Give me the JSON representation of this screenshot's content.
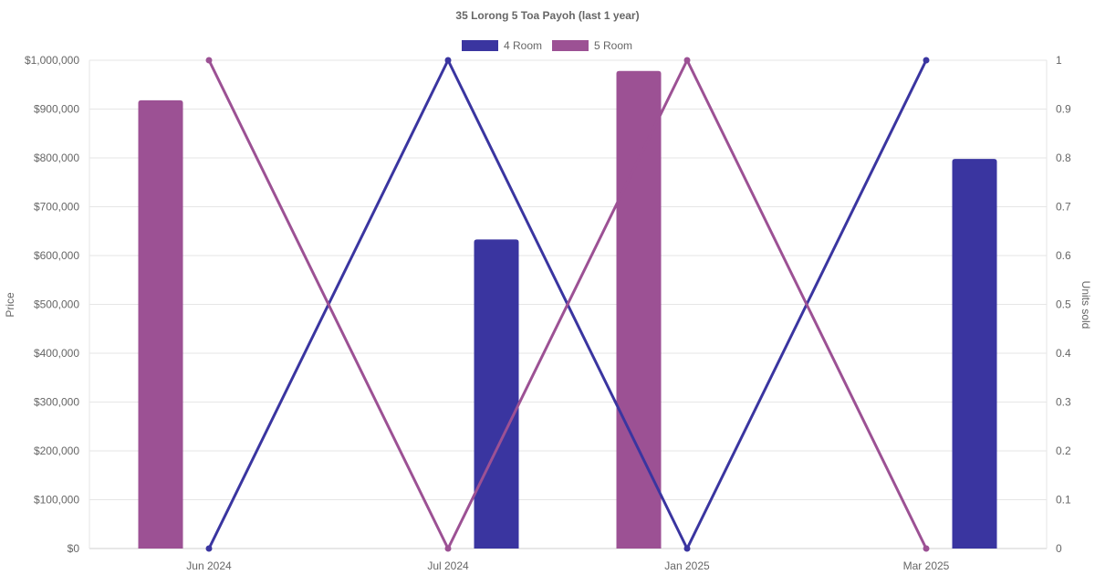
{
  "chart_data": {
    "type": "bar",
    "title": "35 Lorong 5 Toa Payoh (last 1 year)",
    "categories": [
      "Jun 2024",
      "Jul 2024",
      "Jan 2025",
      "Mar 2025"
    ],
    "y_left": {
      "label": "Price",
      "min": 0,
      "max": 1000000,
      "ticks": [
        "$0",
        "$100,000",
        "$200,000",
        "$300,000",
        "$400,000",
        "$500,000",
        "$600,000",
        "$700,000",
        "$800,000",
        "$900,000",
        "$1,000,000"
      ]
    },
    "y_right": {
      "label": "Units sold",
      "min": 0,
      "max": 1,
      "ticks": [
        "0",
        "0.1",
        "0.2",
        "0.3",
        "0.4",
        "0.5",
        "0.6",
        "0.7",
        "0.8",
        "0.9",
        "1"
      ]
    },
    "grid": true,
    "legend_position": "top",
    "series": [
      {
        "name": "4 Room",
        "color": "#3a35a0",
        "price": [
          null,
          633000,
          null,
          798000
        ],
        "units_sold": [
          0,
          1,
          0,
          1
        ]
      },
      {
        "name": "5 Room",
        "color": "#9c5194",
        "price": [
          918000,
          null,
          978000,
          null
        ],
        "units_sold": [
          1,
          0,
          1,
          0
        ]
      }
    ]
  }
}
